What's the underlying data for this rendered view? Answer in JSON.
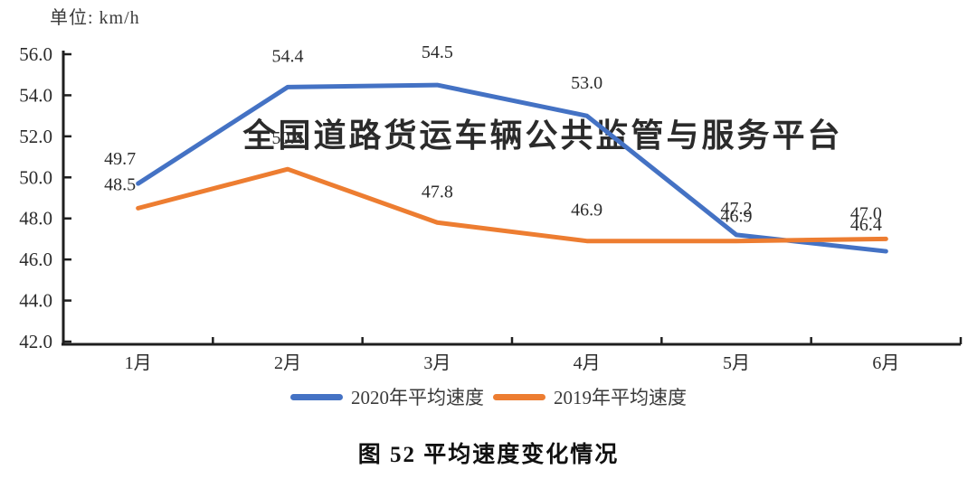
{
  "unit_label": "单位: km/h",
  "watermark": "全国道路货运车辆公共监管与服务平台",
  "caption": "图 52 平均速度变化情况",
  "colors": {
    "series_2020": "#4472C4",
    "series_2019": "#ED7D31",
    "watermark": "#3E5FD9",
    "axis": "#1f1f1f",
    "label_text": "#2b2b2b"
  },
  "chart_data": {
    "type": "line",
    "title": "图 52 平均速度变化情况",
    "unit": "km/h",
    "categories": [
      "1月",
      "2月",
      "3月",
      "4月",
      "5月",
      "6月"
    ],
    "series": [
      {
        "name": "2020年平均速度",
        "color": "#4472C4",
        "values": [
          49.7,
          54.4,
          54.5,
          53.0,
          47.2,
          46.4
        ]
      },
      {
        "name": "2019年平均速度",
        "color": "#ED7D31",
        "values": [
          48.5,
          50.4,
          47.8,
          46.9,
          46.9,
          47.0
        ]
      }
    ],
    "ylim": [
      42.0,
      56.0
    ],
    "ytick_step": 2.0,
    "ytick_labels": [
      "56.0",
      "54.0",
      "52.0",
      "50.0",
      "48.0",
      "46.0",
      "44.0",
      "42.0"
    ],
    "grid": false,
    "data_labels": true,
    "legend_position": "bottom",
    "label_offsets": [
      [
        [
          -20,
          -21
        ],
        [
          0,
          -28
        ],
        [
          0,
          -30
        ],
        [
          0,
          -30
        ],
        [
          0,
          -23
        ],
        [
          -22,
          -23
        ]
      ],
      [
        [
          -20,
          -20
        ],
        [
          0,
          -28
        ],
        [
          0,
          -28
        ],
        [
          0,
          -28
        ],
        [
          0,
          -21
        ],
        [
          -22,
          -22
        ]
      ]
    ]
  }
}
